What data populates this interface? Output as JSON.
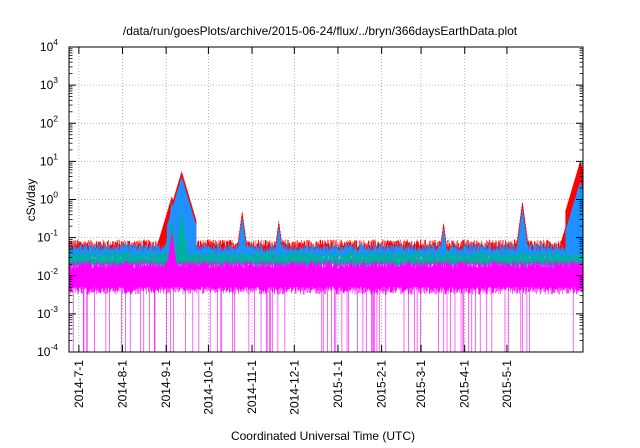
{
  "chart_data": {
    "type": "line",
    "title": "/data/run/goesPlots/archive/2015-06-24/flux/../bryn/366daysEarthData.plot",
    "xlabel": "Coordinated Universal Time (UTC)",
    "ylabel": "cSv/day",
    "yscale": "log",
    "ylim": [
      0.0001,
      10000
    ],
    "xlim": [
      "2014-06-24",
      "2015-06-24"
    ],
    "grid": true,
    "x_ticks": [
      "2014-7-1",
      "2014-8-1",
      "2014-9-1",
      "2014-10-1",
      "2014-11-1",
      "2014-12-1",
      "2015-1-1",
      "2015-2-1",
      "2015-3-1",
      "2015-4-1",
      "2015-5-1"
    ],
    "y_ticks": [
      {
        "value": 0.0001,
        "base": "10",
        "exp": "-4"
      },
      {
        "value": 0.001,
        "base": "10",
        "exp": "-3"
      },
      {
        "value": 0.01,
        "base": "10",
        "exp": "-2"
      },
      {
        "value": 0.1,
        "base": "10",
        "exp": "-1"
      },
      {
        "value": 1,
        "base": "10",
        "exp": "0"
      },
      {
        "value": 10,
        "base": "10",
        "exp": "1"
      },
      {
        "value": 100,
        "base": "10",
        "exp": "2"
      },
      {
        "value": 1000,
        "base": "10",
        "exp": "3"
      },
      {
        "value": 10000,
        "base": "10",
        "exp": "4"
      }
    ],
    "series": [
      {
        "color": "#ff0000",
        "baseline": 0.07,
        "events": [
          {
            "x": "2014-09-05",
            "peak": 1.2
          },
          {
            "x": "2014-09-12",
            "peak": 5.5
          },
          {
            "x": "2014-10-25",
            "peak": 0.5
          },
          {
            "x": "2014-11-20",
            "peak": 0.28
          },
          {
            "x": "2015-03-17",
            "peak": 0.25
          },
          {
            "x": "2015-05-12",
            "peak": 0.9
          },
          {
            "x": "2015-06-18",
            "peak": 1.2
          },
          {
            "x": "2015-06-22",
            "peak": 10
          }
        ]
      },
      {
        "color": "#1e90ff",
        "baseline": 0.055,
        "events": [
          {
            "x": "2014-09-05",
            "peak": 0.9
          },
          {
            "x": "2014-09-12",
            "peak": 4.0
          },
          {
            "x": "2014-10-25",
            "peak": 0.35
          },
          {
            "x": "2014-11-20",
            "peak": 0.2
          },
          {
            "x": "2015-03-17",
            "peak": 0.18
          },
          {
            "x": "2015-05-12",
            "peak": 0.6
          },
          {
            "x": "2015-06-18",
            "peak": 0.8
          },
          {
            "x": "2015-06-22",
            "peak": 3.0
          }
        ]
      },
      {
        "color": "#00b0a0",
        "baseline": 0.035,
        "events": [
          {
            "x": "2014-09-05",
            "peak": 0.3
          },
          {
            "x": "2014-09-12",
            "peak": 0.5
          }
        ]
      },
      {
        "color": "#ff00ff",
        "baseline": 0.02,
        "floor": 0.004,
        "events": [
          {
            "x": "2014-09-05",
            "peak": 0.15
          }
        ]
      }
    ]
  }
}
